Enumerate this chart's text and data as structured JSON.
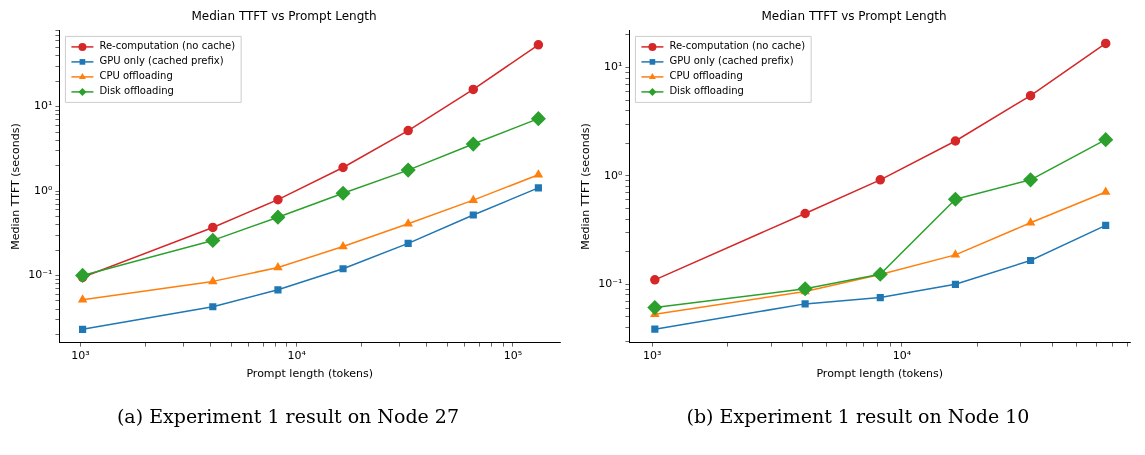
{
  "chart_data": [
    {
      "type": "line",
      "title": "Median TTFT vs Prompt Length",
      "xlabel": "Prompt length (tokens)",
      "ylabel": "Median TTFT (seconds)",
      "log": "xy",
      "grid": false,
      "legend": "top left",
      "x": [
        1024,
        4096,
        8192,
        16384,
        32768,
        65536,
        131072
      ],
      "xlim": [
        800,
        165000
      ],
      "ylim": [
        0.016,
        80
      ],
      "xticks": [
        {
          "value": 1000,
          "label": "10³"
        },
        {
          "value": 2000,
          "label": null
        },
        {
          "value": 3000,
          "label": null
        },
        {
          "value": 4000,
          "label": null
        },
        {
          "value": 5000,
          "label": null
        },
        {
          "value": 6000,
          "label": null
        },
        {
          "value": 7000,
          "label": null
        },
        {
          "value": 8000,
          "label": null
        },
        {
          "value": 9000,
          "label": null
        },
        {
          "value": 10000,
          "label": "10⁴"
        },
        {
          "value": 20000,
          "label": null
        },
        {
          "value": 30000,
          "label": null
        },
        {
          "value": 40000,
          "label": null
        },
        {
          "value": 50000,
          "label": null
        },
        {
          "value": 60000,
          "label": null
        },
        {
          "value": 70000,
          "label": null
        },
        {
          "value": 80000,
          "label": null
        },
        {
          "value": 90000,
          "label": null
        },
        {
          "value": 100000,
          "label": "10⁵"
        }
      ],
      "yticks": [
        {
          "value": 0.02,
          "label": null
        },
        {
          "value": 0.03,
          "label": null
        },
        {
          "value": 0.04,
          "label": null
        },
        {
          "value": 0.05,
          "label": null
        },
        {
          "value": 0.06,
          "label": null
        },
        {
          "value": 0.07,
          "label": null
        },
        {
          "value": 0.08,
          "label": null
        },
        {
          "value": 0.09,
          "label": null
        },
        {
          "value": 0.1,
          "label": "10⁻¹"
        },
        {
          "value": 0.2,
          "label": null
        },
        {
          "value": 0.3,
          "label": null
        },
        {
          "value": 0.4,
          "label": null
        },
        {
          "value": 0.5,
          "label": null
        },
        {
          "value": 0.6,
          "label": null
        },
        {
          "value": 0.7,
          "label": null
        },
        {
          "value": 0.8,
          "label": null
        },
        {
          "value": 0.9,
          "label": null
        },
        {
          "value": 1,
          "label": "10⁰"
        },
        {
          "value": 2,
          "label": null
        },
        {
          "value": 3,
          "label": null
        },
        {
          "value": 4,
          "label": null
        },
        {
          "value": 5,
          "label": null
        },
        {
          "value": 6,
          "label": null
        },
        {
          "value": 7,
          "label": null
        },
        {
          "value": 8,
          "label": null
        },
        {
          "value": 9,
          "label": null
        },
        {
          "value": 10,
          "label": "10¹"
        },
        {
          "value": 20,
          "label": null
        },
        {
          "value": 30,
          "label": null
        },
        {
          "value": 40,
          "label": null
        },
        {
          "value": 50,
          "label": null
        },
        {
          "value": 60,
          "label": null
        },
        {
          "value": 70,
          "label": null
        },
        {
          "value": 80,
          "label": null
        }
      ],
      "series": [
        {
          "name": "Re-computation (no cache)",
          "color": "#d62728",
          "marker": "circle",
          "values": [
            0.095,
            0.37,
            0.79,
            1.9,
            5.2,
            16,
            54
          ]
        },
        {
          "name": "GPU only (cached prefix)",
          "color": "#1f77b4",
          "marker": "square",
          "values": [
            0.023,
            0.0425,
            0.0675,
            0.12,
            0.24,
            0.52,
            1.09
          ]
        },
        {
          "name": "CPU offloading",
          "color": "#ff7f0e",
          "marker": "triangle",
          "values": [
            0.0515,
            0.085,
            0.124,
            0.22,
            0.41,
            0.78,
            1.56
          ]
        },
        {
          "name": "Disk offloading",
          "color": "#2ca02c",
          "marker": "diamond",
          "values": [
            0.1,
            0.26,
            0.49,
            0.94,
            1.77,
            3.6,
            7.2
          ]
        }
      ],
      "annotations": [
        "(a) Experiment 1 result on Node 27"
      ]
    },
    {
      "type": "line",
      "title": "Median TTFT vs Prompt Length",
      "xlabel": "Prompt length (tokens)",
      "ylabel": "Median TTFT (seconds)",
      "log": "xy",
      "grid": false,
      "legend": "top left",
      "x": [
        1024,
        4096,
        8192,
        16384,
        32768,
        65536
      ],
      "xlim": [
        810,
        82000
      ],
      "ylim": [
        0.029,
        22
      ],
      "xticks": [
        {
          "value": 1000,
          "label": "10³"
        },
        {
          "value": 2000,
          "label": null
        },
        {
          "value": 3000,
          "label": null
        },
        {
          "value": 4000,
          "label": null
        },
        {
          "value": 5000,
          "label": null
        },
        {
          "value": 6000,
          "label": null
        },
        {
          "value": 7000,
          "label": null
        },
        {
          "value": 8000,
          "label": null
        },
        {
          "value": 9000,
          "label": null
        },
        {
          "value": 10000,
          "label": "10⁴"
        },
        {
          "value": 20000,
          "label": null
        },
        {
          "value": 30000,
          "label": null
        },
        {
          "value": 40000,
          "label": null
        },
        {
          "value": 50000,
          "label": null
        },
        {
          "value": 60000,
          "label": null
        },
        {
          "value": 70000,
          "label": null
        },
        {
          "value": 80000,
          "label": null
        }
      ],
      "yticks": [
        {
          "value": 0.03,
          "label": null
        },
        {
          "value": 0.04,
          "label": null
        },
        {
          "value": 0.05,
          "label": null
        },
        {
          "value": 0.06,
          "label": null
        },
        {
          "value": 0.07,
          "label": null
        },
        {
          "value": 0.08,
          "label": null
        },
        {
          "value": 0.09,
          "label": null
        },
        {
          "value": 0.1,
          "label": "10⁻¹"
        },
        {
          "value": 0.2,
          "label": null
        },
        {
          "value": 0.3,
          "label": null
        },
        {
          "value": 0.4,
          "label": null
        },
        {
          "value": 0.5,
          "label": null
        },
        {
          "value": 0.6,
          "label": null
        },
        {
          "value": 0.7,
          "label": null
        },
        {
          "value": 0.8,
          "label": null
        },
        {
          "value": 0.9,
          "label": null
        },
        {
          "value": 1,
          "label": "10⁰"
        },
        {
          "value": 2,
          "label": null
        },
        {
          "value": 3,
          "label": null
        },
        {
          "value": 4,
          "label": null
        },
        {
          "value": 5,
          "label": null
        },
        {
          "value": 6,
          "label": null
        },
        {
          "value": 7,
          "label": null
        },
        {
          "value": 8,
          "label": null
        },
        {
          "value": 9,
          "label": null
        },
        {
          "value": 10,
          "label": "10¹"
        },
        {
          "value": 20,
          "label": null
        }
      ],
      "series": [
        {
          "name": "Re-computation (no cache)",
          "color": "#d62728",
          "marker": "circle",
          "values": [
            0.11,
            0.45,
            0.92,
            2.1,
            5.5,
            16.7
          ]
        },
        {
          "name": "GPU only (cached prefix)",
          "color": "#1f77b4",
          "marker": "square",
          "values": [
            0.0386,
            0.066,
            0.0755,
            0.1,
            0.166,
            0.35
          ]
        },
        {
          "name": "CPU offloading",
          "color": "#ff7f0e",
          "marker": "triangle",
          "values": [
            0.053,
            0.086,
            0.123,
            0.187,
            0.37,
            0.71
          ]
        },
        {
          "name": "Disk offloading",
          "color": "#2ca02c",
          "marker": "diamond",
          "values": [
            0.061,
            0.091,
            0.124,
            0.61,
            0.92,
            2.16
          ]
        }
      ],
      "annotations": [
        "(b) Experiment 1 result on Node 10"
      ]
    }
  ]
}
